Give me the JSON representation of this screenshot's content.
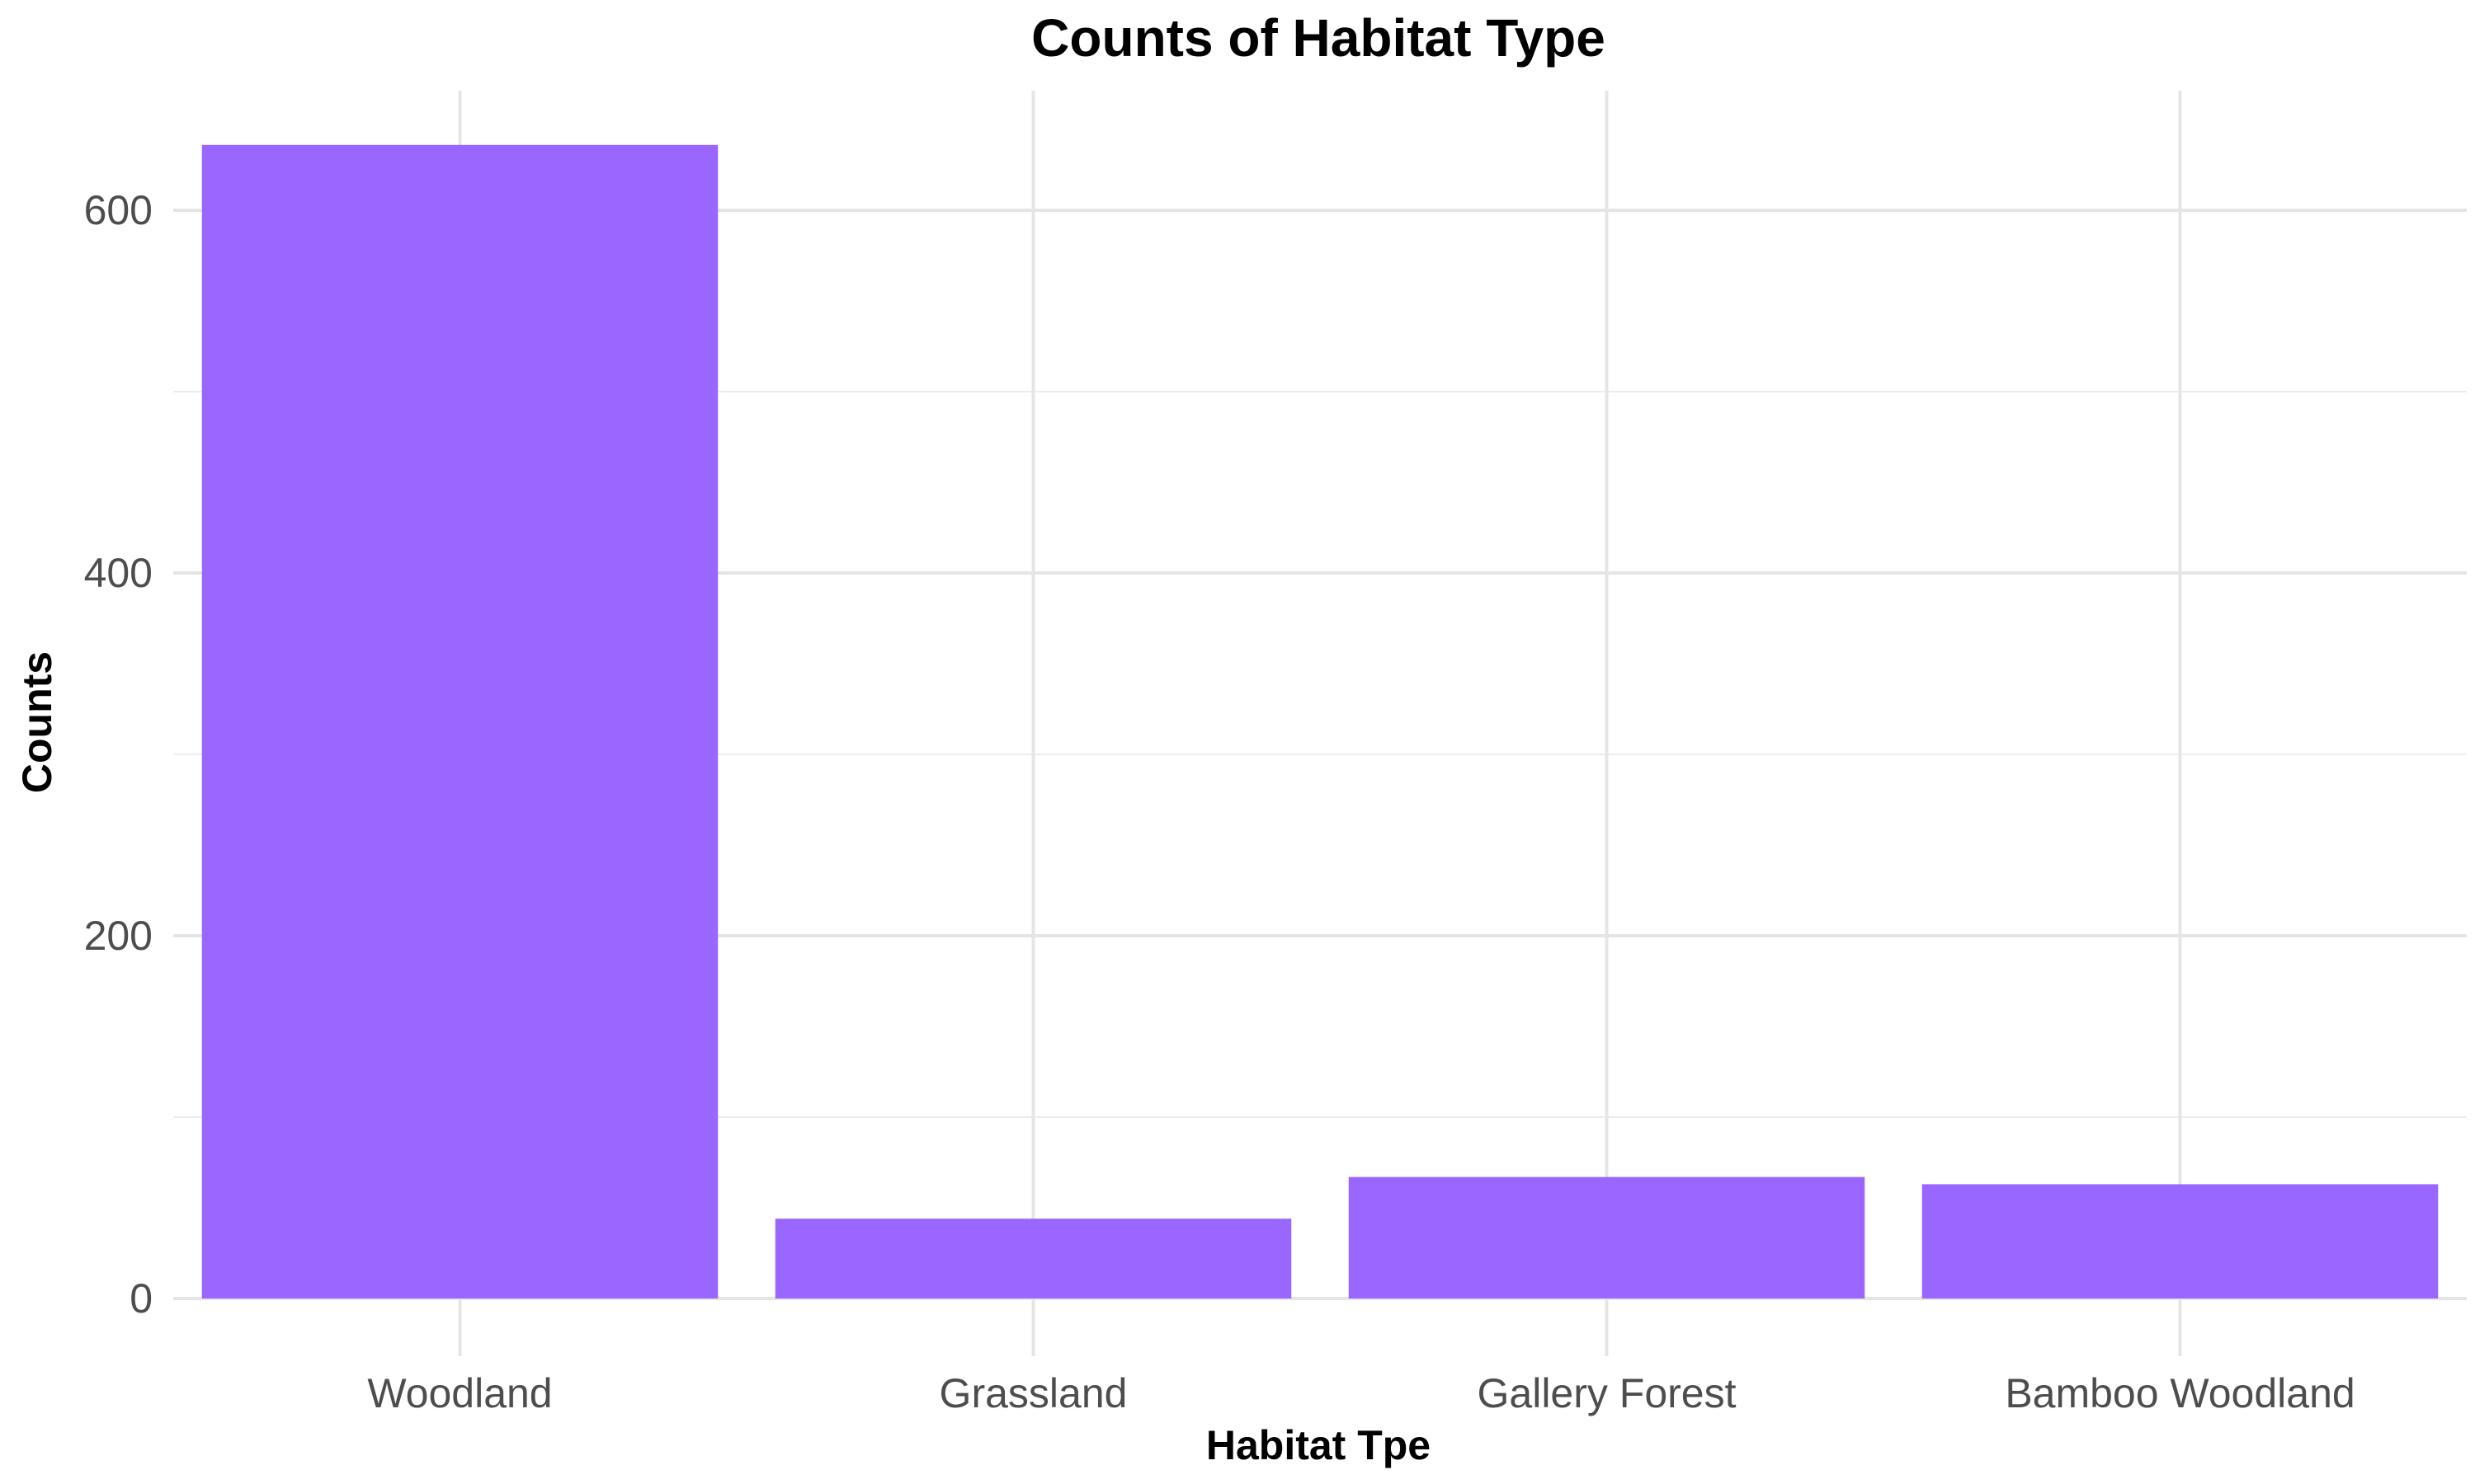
{
  "chart_data": {
    "type": "bar",
    "title": "Counts of Habitat Type",
    "xlabel": "Habitat Tpe",
    "ylabel": "Counts",
    "categories": [
      "Woodland",
      "Grassland",
      "Gallery Forest",
      "Bamboo Woodland"
    ],
    "values": [
      636,
      44,
      67,
      63
    ],
    "ylim": [
      0,
      670
    ],
    "yticks": [
      0,
      200,
      400,
      600
    ],
    "yticks_labels": [
      "0",
      "200",
      "400",
      "600"
    ],
    "y_minor_ticks": [
      100,
      300,
      500
    ],
    "grid": true,
    "legend": "none",
    "bar_color": "#9966FF"
  }
}
